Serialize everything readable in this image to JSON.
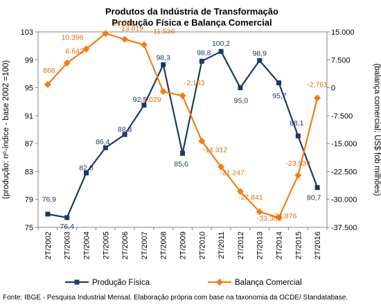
{
  "chart_data": {
    "type": "line",
    "title": "Produtos da Indústria de Transformação",
    "subtitle": "Produção Física e Balança Comercial",
    "ylabel_left": "(produção: nº-índice - base 2002 =100)",
    "ylabel_right": "(balança comercial: US$ fob milhões)",
    "categories": [
      "2T/2002",
      "2T/2003",
      "2T/2004",
      "2T/2005",
      "2T/2006",
      "2T/2007",
      "2T/2008",
      "2T/2009",
      "2T/2010",
      "2T/2011",
      "2T/2012",
      "2T/2013",
      "2T/2014",
      "2T/2015",
      "2T/2016"
    ],
    "y_left": {
      "min": 75,
      "max": 103,
      "ticks": [
        "75",
        "79",
        "83",
        "87",
        "91",
        "95",
        "99",
        "103"
      ]
    },
    "y_right": {
      "min": -37500,
      "max": 15000,
      "ticks": [
        "-37.500",
        "-30.000",
        "-22.500",
        "-15.000",
        "-7.500",
        "0",
        "7.500",
        "15.000"
      ]
    },
    "grid": false,
    "legend_position": "bottom",
    "series": [
      {
        "name": "Produção Física",
        "axis": "left",
        "color": "#1f3864",
        "marker": "square",
        "values": [
          76.9,
          76.4,
          82.8,
          86.4,
          88.3,
          92.5,
          98.3,
          85.6,
          98.8,
          100.2,
          95.0,
          98.9,
          95.7,
          88.1,
          80.7
        ],
        "labels": [
          "76,9",
          "76,4",
          "82,8",
          "86,4",
          "88,3",
          "92,5",
          "98,3",
          "85,6",
          "98,8",
          "100,2",
          "95,0",
          "98,9",
          "95,7",
          "88,1",
          "80,7"
        ]
      },
      {
        "name": "Balança Comercial",
        "axis": "right",
        "color": "#f47c14",
        "marker": "diamond",
        "values": [
          868,
          6642,
          10396,
          14581,
          13019,
          11536,
          -1029,
          -2153,
          -14312,
          -21247,
          -27841,
          -33303,
          -34876,
          -23539,
          -2761
        ],
        "labels": [
          "868",
          "6.642",
          "10.396",
          "14.581",
          "13.019",
          "11.536",
          "-1.029",
          "-2.153",
          "-14.312",
          "-21.247",
          "-27.841",
          "-33.303",
          "-34.876",
          "-23.539",
          "-2.761"
        ]
      }
    ],
    "source": "Fonte: IBGE - Pesquisa Industrial Mensal. Elaboração própria com base na taxonomia da OCDE/ Standatabase."
  }
}
